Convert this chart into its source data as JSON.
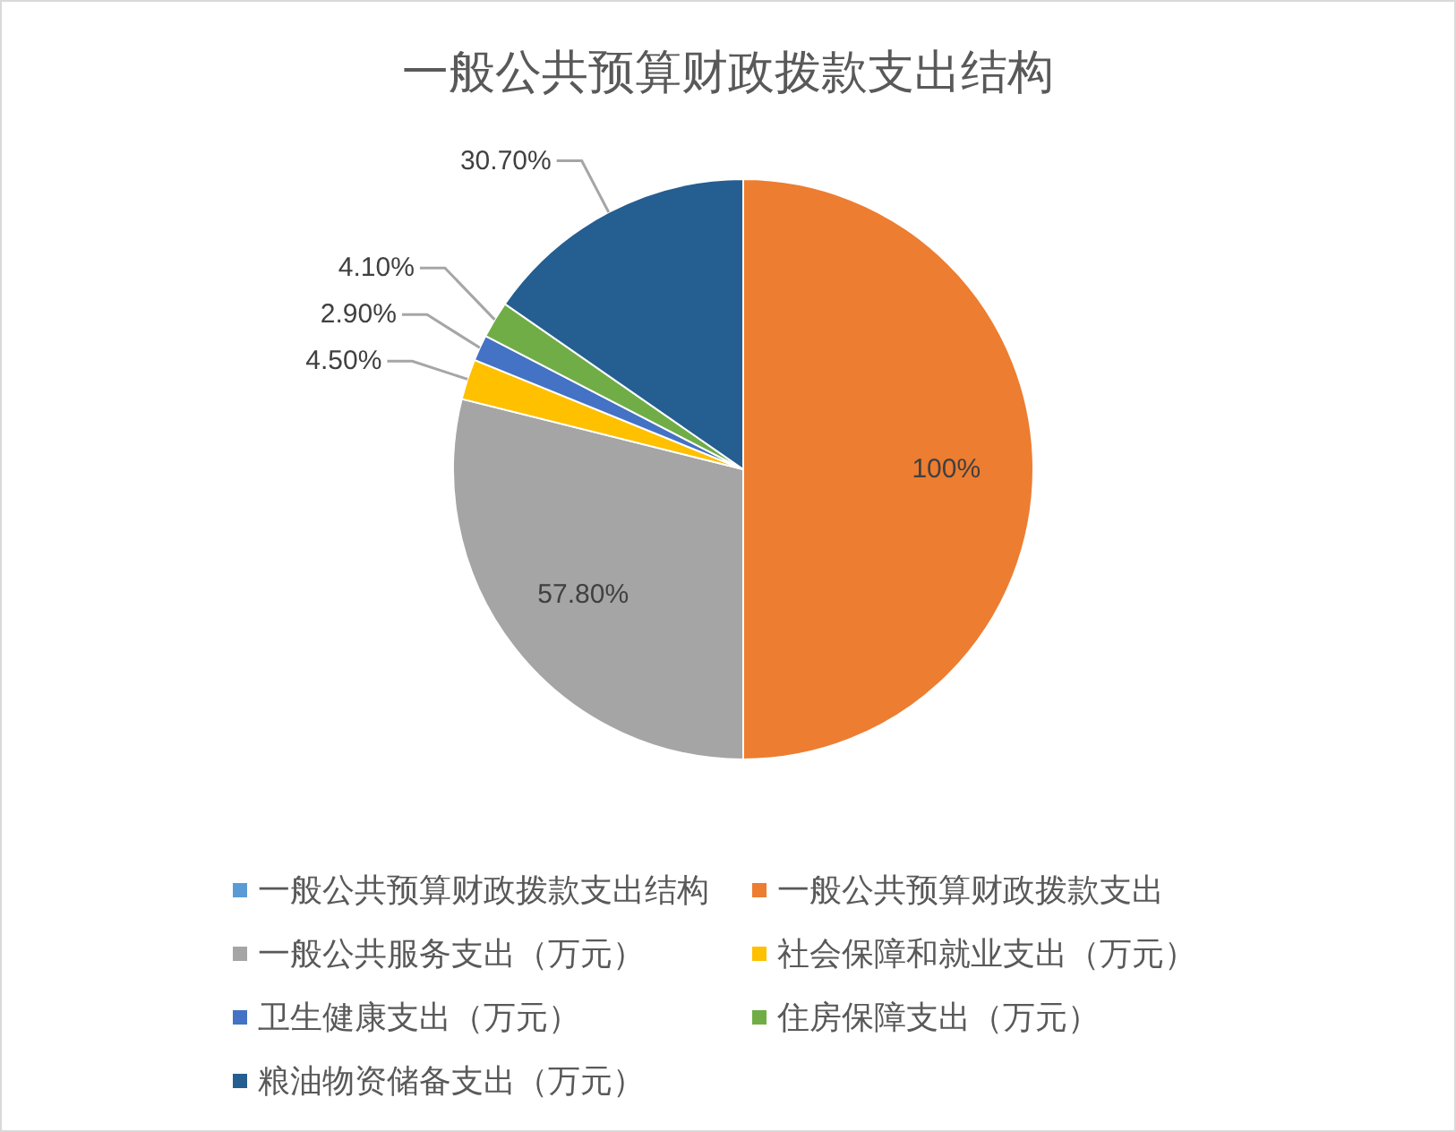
{
  "chart_data": {
    "type": "pie",
    "title": "一般公共预算财政拨款支出结构",
    "categories": [
      "一般公共预算财政拨款支出结构",
      "一般公共预算财政拨款支出",
      "一般公共服务支出（万元）",
      "社会保障和就业支出（万元）",
      "卫生健康支出（万元）",
      "住房保障支出（万元）",
      "粮油物资储备支出（万元）"
    ],
    "values": [
      null,
      100,
      57.8,
      4.5,
      2.9,
      4.1,
      30.7
    ],
    "value_labels": [
      null,
      "100%",
      "57.80%",
      "4.50%",
      "2.90%",
      "4.10%",
      "30.70%"
    ],
    "colors": [
      "#5b9bd5",
      "#ed7d31",
      "#a5a5a5",
      "#ffc000",
      "#4472c4",
      "#70ad47",
      "#255e91"
    ],
    "legend": "bottom"
  }
}
